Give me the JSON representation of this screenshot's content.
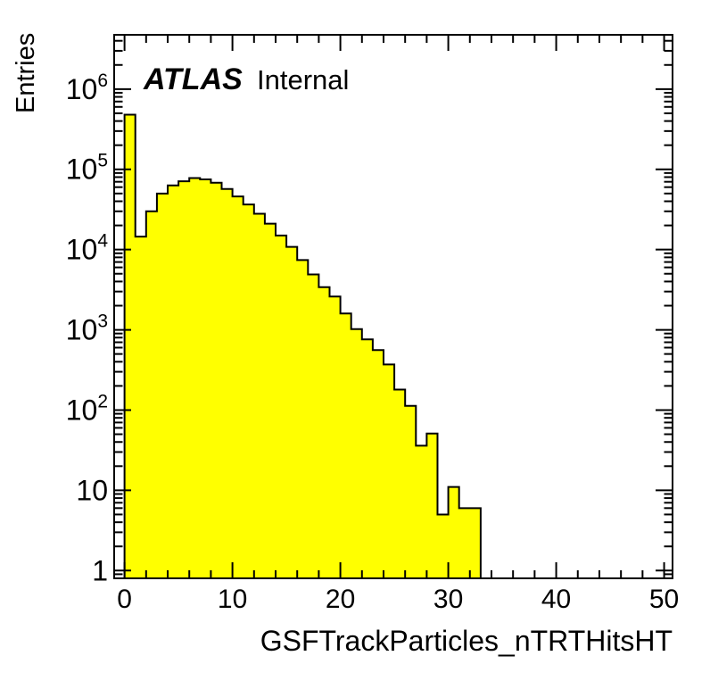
{
  "plot": {
    "y_axis_title": "Entries",
    "x_axis_title": "GSFTrackParticles_nTRTHitsHT",
    "watermark": {
      "experiment": "ATLAS",
      "status": "Internal"
    },
    "colors": {
      "histogram_fill": "#ffff00",
      "line": "#000000",
      "background": "#ffffff"
    }
  },
  "chart_data": {
    "type": "bar",
    "subtype": "histogram-step-filled",
    "title": "",
    "xlabel": "GSFTrackParticles_nTRTHitsHT",
    "ylabel": "Entries",
    "y_scale": "log",
    "grid": false,
    "legend_position": "none",
    "x_first_bin": 0,
    "bin_width": 1,
    "values": [
      480000,
      14500,
      30000,
      50000,
      63000,
      71000,
      78000,
      75000,
      68000,
      57000,
      46000,
      36500,
      28000,
      21000,
      15000,
      10800,
      7400,
      4900,
      3400,
      2600,
      1600,
      1020,
      760,
      560,
      370,
      180,
      113,
      36,
      51,
      5,
      11,
      6,
      6
    ],
    "xlim": [
      -0.96,
      50.78
    ],
    "ylim": [
      0.8,
      4750000
    ],
    "x_major_ticks": [
      0,
      10,
      20,
      30,
      40,
      50
    ],
    "x_tick_labels": [
      "0",
      "10",
      "20",
      "30",
      "40",
      "50"
    ],
    "x_minor_tick_step": 2,
    "y_tick_exponents": [
      0,
      1,
      2,
      3,
      4,
      5,
      6
    ],
    "y_tick_labels": [
      "1",
      "10",
      "10^2",
      "10^3",
      "10^4",
      "10^5",
      "10^6"
    ],
    "ticks_mirrored_all_sides": true
  }
}
